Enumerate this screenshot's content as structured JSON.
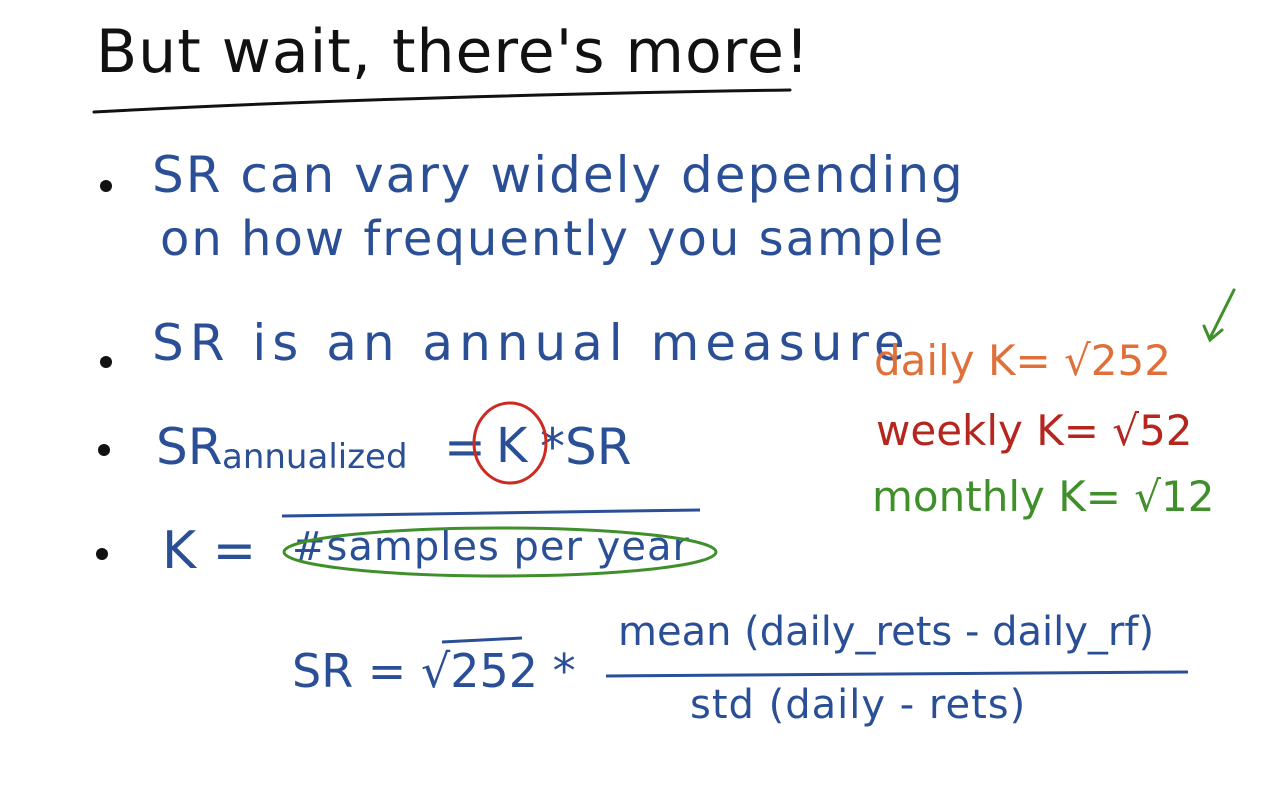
{
  "slide": {
    "title": "But wait, there's more!",
    "bullets": [
      {
        "line1": "SR can vary widely depending",
        "line2": "on how frequently you sample"
      },
      {
        "text": "SR is an annual measure"
      },
      {
        "sr": "SR",
        "sub": "annualized",
        "eq": "=",
        "k": "K",
        "star": "*",
        "sr2": "SR"
      },
      {
        "k": "K =",
        "text": "#samples per year"
      }
    ],
    "rates": [
      {
        "label": "daily K= √252",
        "color": "#e0703a"
      },
      {
        "label": "weekly K= √52",
        "color": "#b5261e"
      },
      {
        "label": "monthly K= √12",
        "color": "#3f8f2a"
      }
    ],
    "formula": {
      "lhs": "SR = √252 *",
      "numerator": "mean (daily_rets - daily_rf)",
      "denominator": "std (daily - rets)"
    }
  }
}
